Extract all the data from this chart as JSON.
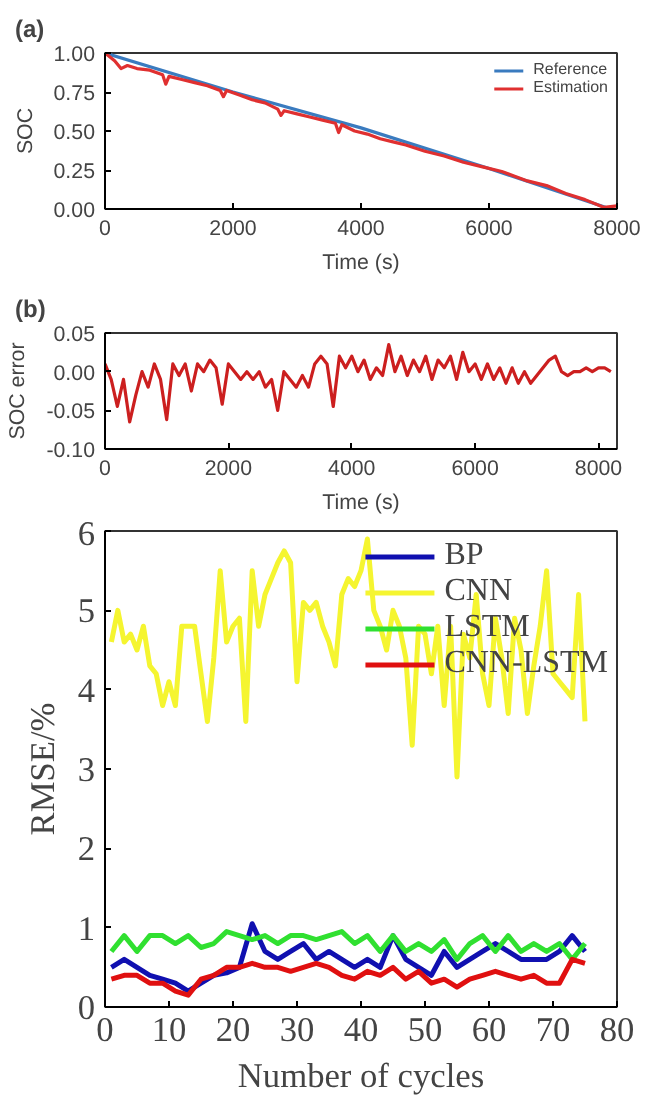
{
  "chart_data": [
    {
      "type": "line",
      "title": "(a)",
      "xlabel": "Time (s)",
      "ylabel": "SOC",
      "xlim": [
        0,
        8000
      ],
      "ylim": [
        0,
        1
      ],
      "xticks": [
        0,
        2000,
        4000,
        6000,
        8000
      ],
      "yticks": [
        {
          "value": 0,
          "label": "0.00"
        },
        {
          "value": 0.25,
          "label": "0.25"
        },
        {
          "value": 0.5,
          "label": "0.50"
        },
        {
          "value": 0.75,
          "label": "0.75"
        },
        {
          "value": 1,
          "label": "1.00"
        }
      ],
      "grid": false,
      "legend": "top right",
      "series": [
        {
          "name": "Reference",
          "color": "#3a7bbf",
          "x": [
            0,
            2000,
            4000,
            6000,
            7900
          ],
          "values": [
            1.0,
            0.75,
            0.52,
            0.26,
            0.0
          ]
        },
        {
          "name": "Estimation",
          "color": "#e03030",
          "x": [
            0,
            150,
            250,
            350,
            500,
            700,
            900,
            950,
            1000,
            1200,
            1400,
            1600,
            1800,
            1850,
            1900,
            2100,
            2300,
            2500,
            2700,
            2750,
            2800,
            3000,
            3200,
            3400,
            3600,
            3650,
            3700,
            3900,
            4100,
            4300,
            4500,
            4700,
            5000,
            5300,
            5600,
            5900,
            6200,
            6400,
            6600,
            6900,
            7200,
            7500,
            7800,
            8000
          ],
          "values": [
            1.0,
            0.95,
            0.9,
            0.92,
            0.9,
            0.89,
            0.86,
            0.8,
            0.85,
            0.83,
            0.81,
            0.79,
            0.76,
            0.72,
            0.76,
            0.73,
            0.7,
            0.68,
            0.64,
            0.6,
            0.63,
            0.61,
            0.59,
            0.57,
            0.55,
            0.49,
            0.54,
            0.5,
            0.48,
            0.45,
            0.43,
            0.41,
            0.37,
            0.34,
            0.3,
            0.27,
            0.24,
            0.21,
            0.18,
            0.15,
            0.1,
            0.06,
            0.01,
            0.02
          ]
        }
      ]
    },
    {
      "type": "line",
      "title": "(b)",
      "xlabel": "Time (s)",
      "ylabel": "SOC error",
      "xlim": [
        0,
        8300
      ],
      "ylim": [
        -0.1,
        0.05
      ],
      "xticks": [
        0,
        2000,
        4000,
        6000,
        8000
      ],
      "yticks": [
        {
          "value": -0.1,
          "label": "-0.10"
        },
        {
          "value": -0.05,
          "label": "-0.05"
        },
        {
          "value": 0,
          "label": "0.00"
        },
        {
          "value": 0.05,
          "label": "0.05"
        }
      ],
      "grid": false,
      "series": [
        {
          "color": "#cc1f1f",
          "x": [
            0,
            100,
            200,
            300,
            400,
            500,
            600,
            700,
            800,
            900,
            1000,
            1100,
            1200,
            1300,
            1400,
            1500,
            1600,
            1700,
            1800,
            1900,
            2000,
            2100,
            2200,
            2300,
            2400,
            2500,
            2600,
            2700,
            2800,
            2900,
            3000,
            3100,
            3200,
            3300,
            3400,
            3500,
            3600,
            3700,
            3800,
            3900,
            4000,
            4100,
            4200,
            4300,
            4400,
            4500,
            4600,
            4700,
            4800,
            4900,
            5000,
            5100,
            5200,
            5300,
            5400,
            5500,
            5600,
            5700,
            5800,
            5900,
            6000,
            6100,
            6200,
            6300,
            6400,
            6500,
            6600,
            6700,
            6800,
            6900,
            7000,
            7100,
            7200,
            7300,
            7400,
            7500,
            7600,
            7700,
            7800,
            7900,
            8000,
            8100,
            8200
          ],
          "values": [
            0.01,
            -0.01,
            -0.045,
            -0.01,
            -0.065,
            -0.03,
            0.0,
            -0.02,
            0.01,
            -0.01,
            -0.062,
            0.01,
            -0.005,
            0.01,
            -0.025,
            0.01,
            0.0,
            0.015,
            0.005,
            -0.042,
            0.01,
            0.0,
            -0.01,
            0.0,
            -0.01,
            0.0,
            -0.02,
            -0.01,
            -0.05,
            0.0,
            -0.01,
            -0.02,
            -0.005,
            -0.02,
            0.01,
            0.02,
            0.01,
            -0.045,
            0.02,
            0.005,
            0.02,
            0.0,
            0.015,
            -0.01,
            0.005,
            -0.005,
            0.035,
            0.0,
            0.02,
            -0.005,
            0.015,
            0.0,
            0.02,
            -0.01,
            0.015,
            0.005,
            0.02,
            -0.01,
            0.025,
            0.0,
            0.01,
            -0.01,
            0.01,
            -0.01,
            0.005,
            -0.015,
            0.005,
            -0.015,
            0.0,
            -0.015,
            -0.005,
            0.005,
            0.015,
            0.02,
            0.0,
            -0.005,
            0.0,
            0.0,
            0.005,
            0.0,
            0.005,
            0.005,
            0.0
          ]
        }
      ]
    },
    {
      "type": "line",
      "xlabel": "Number of cycles",
      "ylabel": "RMSE/%",
      "xlim": [
        0,
        80
      ],
      "ylim": [
        0,
        6
      ],
      "xticks": [
        0,
        10,
        20,
        30,
        40,
        50,
        60,
        70,
        80
      ],
      "yticks": [
        0,
        1,
        2,
        3,
        4,
        5,
        6
      ],
      "grid": false,
      "legend": "top right",
      "series": [
        {
          "name": "BP",
          "color": "#1010b0",
          "x": [
            1,
            3,
            5,
            7,
            9,
            11,
            13,
            15,
            17,
            19,
            21,
            23,
            25,
            27,
            29,
            31,
            33,
            35,
            37,
            39,
            41,
            43,
            45,
            47,
            49,
            51,
            53,
            55,
            57,
            59,
            61,
            63,
            65,
            67,
            69,
            71,
            73,
            75
          ],
          "values": [
            0.5,
            0.6,
            0.5,
            0.4,
            0.35,
            0.3,
            0.2,
            0.3,
            0.4,
            0.43,
            0.5,
            1.05,
            0.7,
            0.6,
            0.7,
            0.8,
            0.6,
            0.7,
            0.6,
            0.5,
            0.6,
            0.5,
            0.9,
            0.6,
            0.5,
            0.4,
            0.7,
            0.5,
            0.6,
            0.7,
            0.8,
            0.7,
            0.6,
            0.6,
            0.6,
            0.7,
            0.9,
            0.7
          ]
        },
        {
          "name": "CNN",
          "color": "#f5f530",
          "x": [
            1,
            2,
            3,
            4,
            5,
            6,
            7,
            8,
            9,
            10,
            11,
            12,
            13,
            14,
            15,
            16,
            17,
            18,
            19,
            20,
            21,
            22,
            23,
            24,
            25,
            26,
            27,
            28,
            29,
            30,
            31,
            32,
            33,
            34,
            35,
            36,
            37,
            38,
            39,
            40,
            41,
            42,
            43,
            44,
            45,
            46,
            47,
            48,
            49,
            50,
            51,
            52,
            53,
            54,
            55,
            56,
            57,
            58,
            59,
            60,
            61,
            62,
            63,
            64,
            65,
            66,
            67,
            68,
            69,
            70,
            71,
            72,
            73,
            74,
            75
          ],
          "values": [
            4.6,
            5.0,
            4.6,
            4.7,
            4.5,
            4.8,
            4.3,
            4.2,
            3.8,
            4.1,
            3.8,
            4.8,
            4.8,
            4.8,
            4.2,
            3.6,
            4.4,
            5.5,
            4.6,
            4.8,
            4.9,
            3.6,
            5.5,
            4.8,
            5.2,
            5.4,
            5.6,
            5.75,
            5.6,
            4.1,
            5.1,
            5.0,
            5.1,
            4.8,
            4.6,
            4.3,
            5.2,
            5.4,
            5.3,
            5.5,
            5.9,
            5.0,
            4.8,
            4.5,
            5.0,
            4.8,
            4.4,
            3.3,
            4.8,
            4.7,
            4.2,
            4.8,
            3.8,
            4.8,
            2.9,
            4.7,
            4.4,
            5.2,
            4.2,
            3.8,
            4.9,
            4.4,
            3.7,
            4.9,
            4.5,
            3.7,
            4.3,
            4.8,
            5.5,
            4.2,
            4.1,
            4.0,
            3.9,
            5.2,
            3.6
          ]
        },
        {
          "name": "LSTM",
          "color": "#30e030",
          "x": [
            1,
            3,
            5,
            7,
            9,
            11,
            13,
            15,
            17,
            19,
            21,
            23,
            25,
            27,
            29,
            31,
            33,
            35,
            37,
            39,
            41,
            43,
            45,
            47,
            49,
            51,
            53,
            55,
            57,
            59,
            61,
            63,
            65,
            67,
            69,
            71,
            73,
            75
          ],
          "values": [
            0.7,
            0.9,
            0.7,
            0.9,
            0.9,
            0.8,
            0.9,
            0.75,
            0.8,
            0.95,
            0.9,
            0.85,
            0.9,
            0.8,
            0.9,
            0.9,
            0.85,
            0.9,
            0.95,
            0.8,
            0.9,
            0.7,
            0.9,
            0.7,
            0.8,
            0.7,
            0.85,
            0.6,
            0.8,
            0.9,
            0.7,
            0.9,
            0.7,
            0.8,
            0.7,
            0.8,
            0.6,
            0.8
          ]
        },
        {
          "name": "CNN-LSTM",
          "color": "#e01010",
          "x": [
            1,
            3,
            5,
            7,
            9,
            11,
            13,
            15,
            17,
            19,
            21,
            23,
            25,
            27,
            29,
            31,
            33,
            35,
            37,
            39,
            41,
            43,
            45,
            47,
            49,
            51,
            53,
            55,
            57,
            59,
            61,
            63,
            65,
            67,
            69,
            71,
            73,
            75
          ],
          "values": [
            0.35,
            0.4,
            0.4,
            0.3,
            0.3,
            0.2,
            0.15,
            0.35,
            0.4,
            0.5,
            0.5,
            0.55,
            0.5,
            0.5,
            0.45,
            0.5,
            0.55,
            0.5,
            0.4,
            0.35,
            0.45,
            0.4,
            0.5,
            0.35,
            0.45,
            0.3,
            0.35,
            0.25,
            0.35,
            0.4,
            0.45,
            0.4,
            0.35,
            0.4,
            0.3,
            0.3,
            0.6,
            0.55
          ]
        }
      ]
    }
  ]
}
